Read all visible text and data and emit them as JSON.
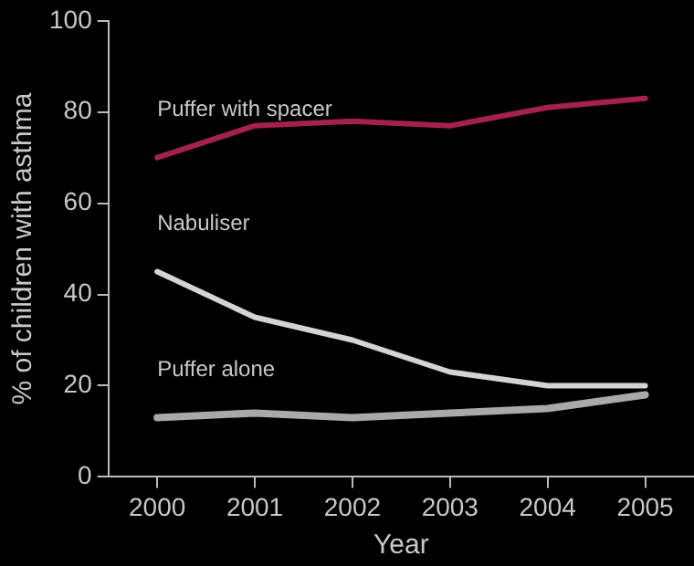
{
  "chart_data": {
    "type": "line",
    "xlabel": "Year",
    "ylabel": "% of children with asthma",
    "categories": [
      "2000",
      "2001",
      "2002",
      "2003",
      "2004",
      "2005"
    ],
    "series": [
      {
        "name": "Puffer with spacer",
        "color": "#a3214f",
        "values": [
          70,
          77,
          78,
          77,
          81,
          83
        ]
      },
      {
        "name": "Nabuliser",
        "color": "#d4d4d4",
        "values": [
          45,
          35,
          30,
          23,
          20,
          20
        ]
      },
      {
        "name": "Puffer alone",
        "color": "#a9a9a9",
        "values": [
          13,
          14,
          13,
          14,
          15,
          18
        ]
      }
    ],
    "ylim": [
      0,
      100
    ],
    "yticks": [
      0,
      20,
      40,
      60,
      80,
      100
    ],
    "grid": false,
    "legend": false,
    "marker": "none",
    "line_style": "solid"
  }
}
